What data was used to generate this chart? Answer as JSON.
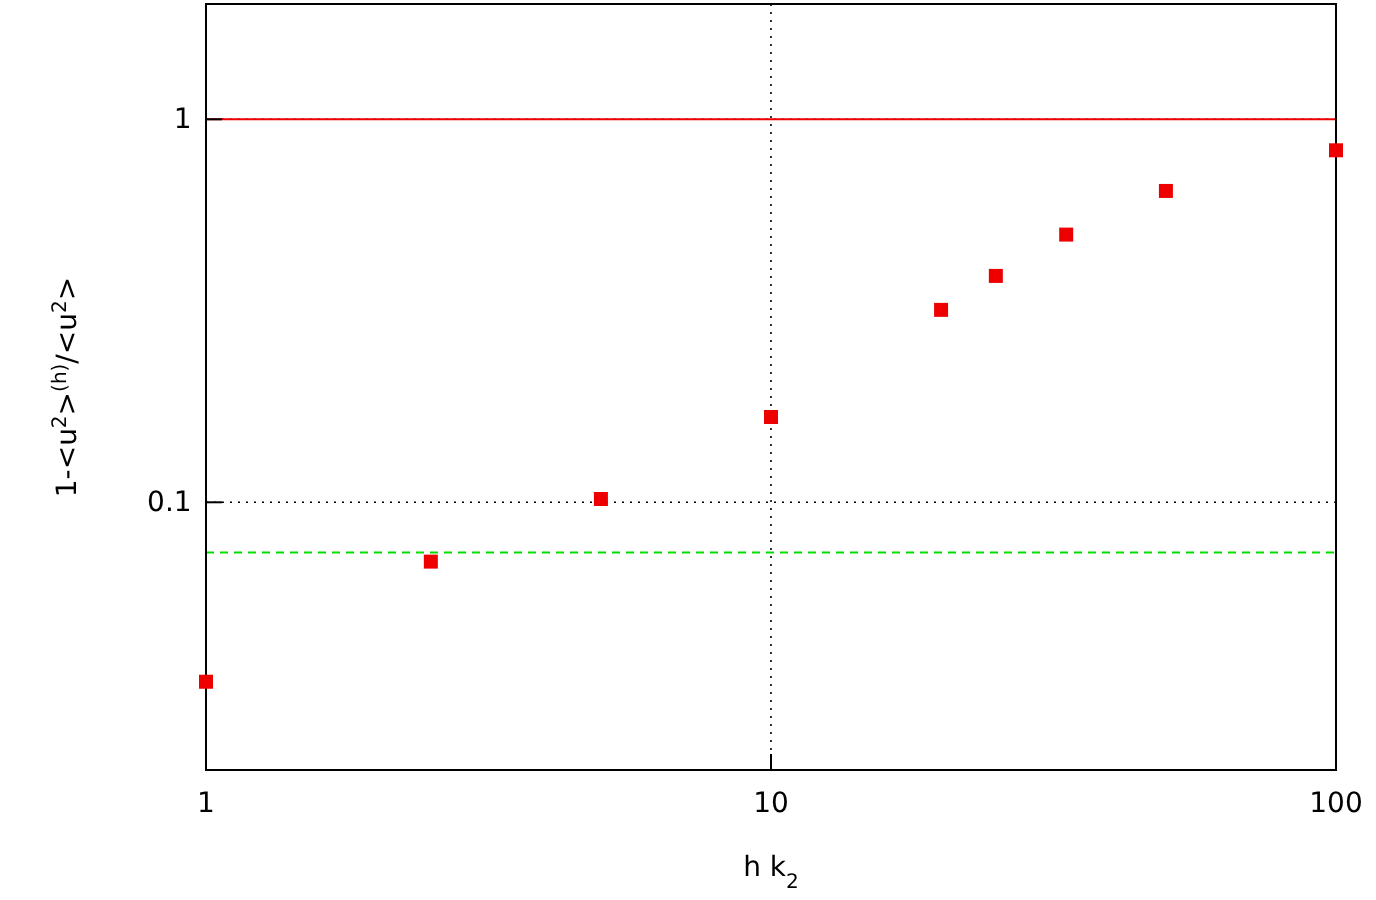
{
  "chart_data": {
    "type": "scatter",
    "xlabel": "h k$_{2}$",
    "ylabel": "1-<u$^{2}$>$^{(h)}$/<u$^{2}$>",
    "log": "xy",
    "grid": true,
    "marker": "square",
    "x": [
      1,
      2.5,
      5,
      10,
      20,
      25,
      33.3,
      50,
      100
    ],
    "series": [
      {
        "color": "#ee0000",
        "values": [
          0.034,
          0.07,
          0.102,
          0.167,
          0.318,
          0.39,
          0.5,
          0.65,
          0.83
        ]
      }
    ],
    "xlim": [
      1,
      100
    ],
    "xticks": [
      1,
      10,
      100
    ],
    "ylim": [
      0.02,
      2
    ],
    "yticks": [
      0.1,
      1
    ],
    "ref_lines": [
      {
        "axis": "y",
        "value": 1,
        "color": "#ee0000",
        "line_style": "solid"
      },
      {
        "axis": "y",
        "value": 0.074,
        "color": "#00dd00",
        "line_style": "dashed"
      }
    ]
  }
}
